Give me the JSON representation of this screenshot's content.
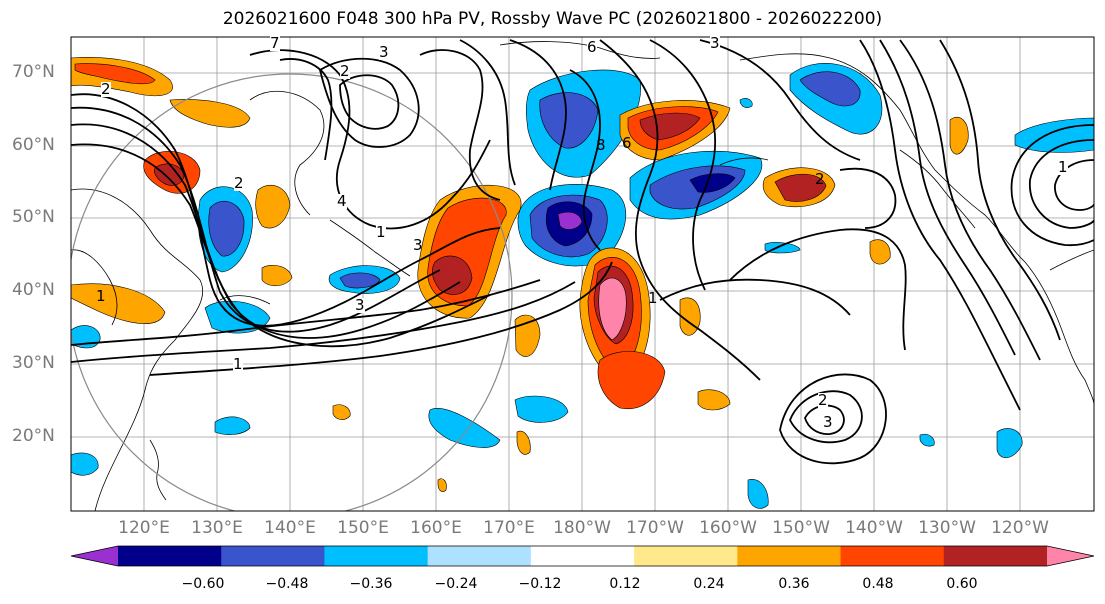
{
  "title": "2026021600 F048 300 hPa PV, Rossby Wave PC (2026021800 - 2026022200)",
  "map": {
    "lat_labels": [
      "70°N",
      "60°N",
      "50°N",
      "40°N",
      "30°N",
      "20°N"
    ],
    "lon_labels": [
      "120°E",
      "130°E",
      "140°E",
      "150°E",
      "160°E",
      "170°E",
      "180°W",
      "170°W",
      "160°W",
      "150°W",
      "140°W",
      "130°W",
      "120°W"
    ],
    "contour_labels": [
      "7",
      "3",
      "2",
      "6",
      "3",
      "2",
      "2",
      "4",
      "3",
      "6",
      "8",
      "1",
      "1",
      "1",
      "3",
      "1",
      "2",
      "3",
      "2",
      "1"
    ],
    "pv_unit_color": "#000000"
  },
  "colorbar": {
    "colors": [
      "#9b30d0",
      "#00008b",
      "#3a54cc",
      "#00bfff",
      "#aee0ff",
      "#ffffff",
      "#ffe98a",
      "#ffa500",
      "#ff4500",
      "#b22222",
      "#ff84aa"
    ],
    "ticks": [
      "−0.60",
      "−0.48",
      "−0.36",
      "−0.24",
      "−0.12",
      "0.12",
      "0.24",
      "0.36",
      "0.48",
      "0.60"
    ]
  }
}
